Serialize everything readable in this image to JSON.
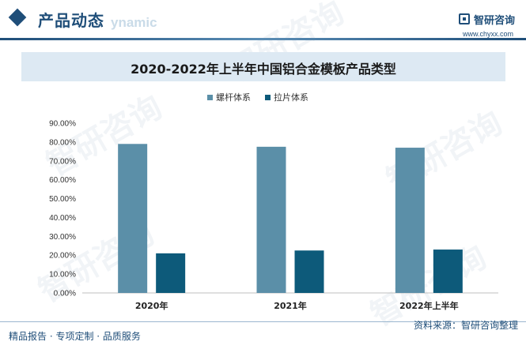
{
  "header": {
    "section_title": "产品动态",
    "section_ghost": "ynamic",
    "brand_name": "智研咨询",
    "brand_url": "www.chyxx.com"
  },
  "watermark_text": "智研咨询",
  "footer": {
    "left": "精品报告 · 专项定制 · 品质服务",
    "right": "资料来源：智研咨询整理"
  },
  "colors": {
    "series_1": "#5b8fa8",
    "series_2": "#0d5a7a",
    "accent": "#1f4e79"
  },
  "chart_data": {
    "type": "bar",
    "title": "2020-2022年上半年中国铝合金模板产品类型",
    "categories": [
      "2020年",
      "2021年",
      "2022年上半年"
    ],
    "series": [
      {
        "name": "螺杆体系",
        "values": [
          79.0,
          77.5,
          77.0
        ]
      },
      {
        "name": "拉片体系",
        "values": [
          21.0,
          22.5,
          23.0
        ]
      }
    ],
    "ylim": [
      0,
      90
    ],
    "yticks": [
      "0.00%",
      "10.00%",
      "20.00%",
      "30.00%",
      "40.00%",
      "50.00%",
      "60.00%",
      "70.00%",
      "80.00%",
      "90.00%"
    ],
    "ytick_values": [
      0,
      10,
      20,
      30,
      40,
      50,
      60,
      70,
      80,
      90
    ],
    "legend_position": "top-center",
    "grid": false
  }
}
